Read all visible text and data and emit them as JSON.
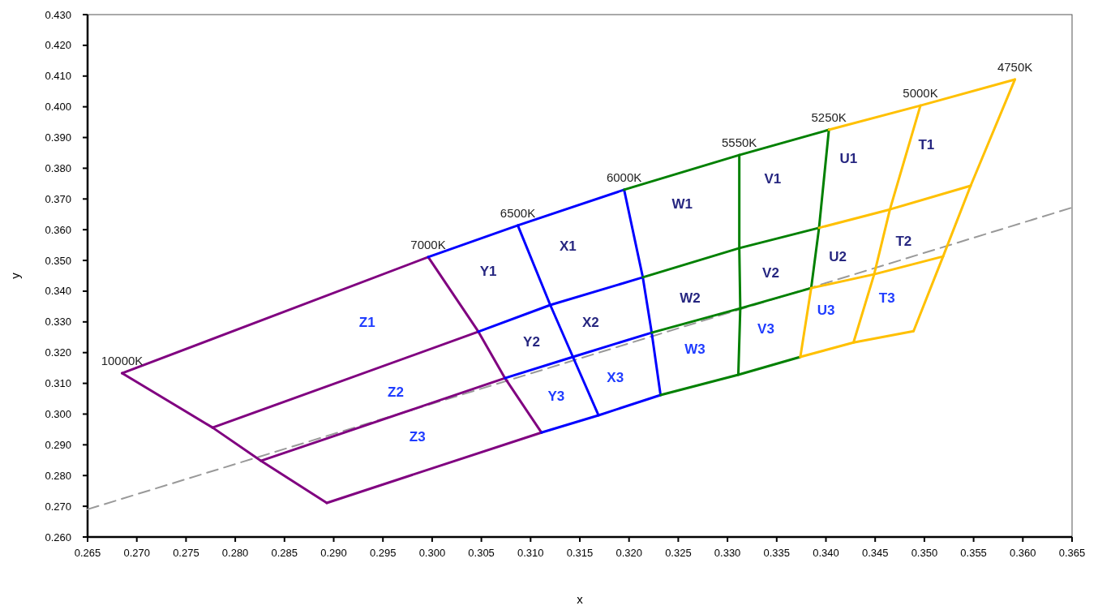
{
  "chart_data": {
    "type": "line",
    "xlabel": "x",
    "ylabel": "y",
    "xlim": [
      0.265,
      0.365
    ],
    "ylim": [
      0.26,
      0.43
    ],
    "xticks": [
      {
        "value": 0.265,
        "label": "0.265"
      },
      {
        "value": 0.27,
        "label": "0.270"
      },
      {
        "value": 0.275,
        "label": "0.275"
      },
      {
        "value": 0.28,
        "label": "0.280"
      },
      {
        "value": 0.285,
        "label": "0.285"
      },
      {
        "value": 0.29,
        "label": "0.290"
      },
      {
        "value": 0.295,
        "label": "0.295"
      },
      {
        "value": 0.3,
        "label": "0.300"
      },
      {
        "value": 0.305,
        "label": "0.305"
      },
      {
        "value": 0.31,
        "label": "0.310"
      },
      {
        "value": 0.315,
        "label": "0.315"
      },
      {
        "value": 0.32,
        "label": "0.320"
      },
      {
        "value": 0.325,
        "label": "0.325"
      },
      {
        "value": 0.33,
        "label": "0.330"
      },
      {
        "value": 0.335,
        "label": "0.335"
      },
      {
        "value": 0.34,
        "label": "0.340"
      },
      {
        "value": 0.345,
        "label": "0.345"
      },
      {
        "value": 0.35,
        "label": "0.350"
      },
      {
        "value": 0.355,
        "label": "0.355"
      },
      {
        "value": 0.36,
        "label": "0.360"
      },
      {
        "value": 0.365,
        "label": "0.365"
      }
    ],
    "yticks": [
      {
        "value": 0.26,
        "label": "0.260"
      },
      {
        "value": 0.27,
        "label": "0.270"
      },
      {
        "value": 0.28,
        "label": "0.280"
      },
      {
        "value": 0.29,
        "label": "0.290"
      },
      {
        "value": 0.3,
        "label": "0.300"
      },
      {
        "value": 0.31,
        "label": "0.310"
      },
      {
        "value": 0.32,
        "label": "0.320"
      },
      {
        "value": 0.33,
        "label": "0.330"
      },
      {
        "value": 0.34,
        "label": "0.340"
      },
      {
        "value": 0.35,
        "label": "0.350"
      },
      {
        "value": 0.36,
        "label": "0.360"
      },
      {
        "value": 0.37,
        "label": "0.370"
      },
      {
        "value": 0.38,
        "label": "0.380"
      },
      {
        "value": 0.39,
        "label": "0.390"
      },
      {
        "value": 0.4,
        "label": "0.400"
      },
      {
        "value": 0.41,
        "label": "0.410"
      },
      {
        "value": 0.42,
        "label": "0.420"
      },
      {
        "value": 0.43,
        "label": "0.430"
      }
    ],
    "grid": false,
    "marker": "none",
    "series": [
      {
        "color": "#999999",
        "line_style": "dashed",
        "x": [
          0.265,
          0.365
        ],
        "values": [
          0.269,
          0.3672
        ]
      },
      {
        "color": "#800080",
        "x": [
          0.2685,
          0.2996
        ],
        "values": [
          0.3133,
          0.3511
        ]
      },
      {
        "color": "#800080",
        "x": [
          0.2685,
          0.2777,
          0.2826,
          0.2893
        ],
        "values": [
          0.3133,
          0.2956,
          0.2848,
          0.2711
        ]
      },
      {
        "color": "#800080",
        "x": [
          0.2893,
          0.3111
        ],
        "values": [
          0.2711,
          0.294
        ]
      },
      {
        "color": "#800080",
        "x": [
          0.2996,
          0.3047,
          0.3074,
          0.3111
        ],
        "values": [
          0.3511,
          0.3268,
          0.3117,
          0.294
        ]
      },
      {
        "color": "#800080",
        "x": [
          0.2777,
          0.3047
        ],
        "values": [
          0.2956,
          0.3268
        ]
      },
      {
        "color": "#800080",
        "x": [
          0.2826,
          0.3074
        ],
        "values": [
          0.2848,
          0.3117
        ]
      },
      {
        "color": "#0000ff",
        "x": [
          0.2996,
          0.3087,
          0.3195
        ],
        "values": [
          0.3511,
          0.3614,
          0.373
        ]
      },
      {
        "color": "#0000ff",
        "x": [
          0.3087,
          0.312,
          0.3143,
          0.3169
        ],
        "values": [
          0.3614,
          0.3355,
          0.3186,
          0.2996
        ]
      },
      {
        "color": "#0000ff",
        "x": [
          0.3195,
          0.3214,
          0.3223,
          0.3232
        ],
        "values": [
          0.373,
          0.3445,
          0.3265,
          0.3062
        ]
      },
      {
        "color": "#0000ff",
        "x": [
          0.3047,
          0.312,
          0.3214
        ],
        "values": [
          0.3268,
          0.3355,
          0.3445
        ]
      },
      {
        "color": "#0000ff",
        "x": [
          0.3074,
          0.3143,
          0.3223
        ],
        "values": [
          0.3117,
          0.3186,
          0.3265
        ]
      },
      {
        "color": "#0000ff",
        "x": [
          0.3111,
          0.3169,
          0.3232
        ],
        "values": [
          0.294,
          0.2996,
          0.3062
        ]
      },
      {
        "color": "#008000",
        "x": [
          0.3195,
          0.3312,
          0.3403
        ],
        "values": [
          0.373,
          0.3843,
          0.3925
        ]
      },
      {
        "color": "#008000",
        "x": [
          0.3312,
          0.3312,
          0.3313,
          0.3311
        ],
        "values": [
          0.3843,
          0.354,
          0.3344,
          0.3128
        ]
      },
      {
        "color": "#008000",
        "x": [
          0.3403,
          0.3393,
          0.3385
        ],
        "values": [
          0.3925,
          0.3606,
          0.341
        ]
      },
      {
        "color": "#008000",
        "x": [
          0.3214,
          0.3312,
          0.3393
        ],
        "values": [
          0.3445,
          0.354,
          0.3606
        ]
      },
      {
        "color": "#008000",
        "x": [
          0.3223,
          0.3313,
          0.3385
        ],
        "values": [
          0.3265,
          0.3344,
          0.341
        ]
      },
      {
        "color": "#008000",
        "x": [
          0.3232,
          0.3311,
          0.3374
        ],
        "values": [
          0.3062,
          0.3128,
          0.3186
        ]
      },
      {
        "color": "#ffc000",
        "x": [
          0.3403,
          0.3496,
          0.3592
        ],
        "values": [
          0.3925,
          0.4004,
          0.4089
        ]
      },
      {
        "color": "#ffc000",
        "x": [
          0.3385,
          0.3374
        ],
        "values": [
          0.341,
          0.3186
        ]
      },
      {
        "color": "#ffc000",
        "x": [
          0.3496,
          0.3465,
          0.3449,
          0.3428
        ],
        "values": [
          0.4004,
          0.3666,
          0.3455,
          0.3233
        ]
      },
      {
        "color": "#ffc000",
        "x": [
          0.3592,
          0.3547,
          0.3519,
          0.3489
        ],
        "values": [
          0.4089,
          0.3743,
          0.3513,
          0.327
        ]
      },
      {
        "color": "#ffc000",
        "x": [
          0.3393,
          0.3465,
          0.3547
        ],
        "values": [
          0.3606,
          0.3666,
          0.3743
        ]
      },
      {
        "color": "#ffc000",
        "x": [
          0.3385,
          0.3449,
          0.3519
        ],
        "values": [
          0.341,
          0.3455,
          0.3513
        ]
      },
      {
        "color": "#ffc000",
        "x": [
          0.3374,
          0.3428,
          0.3489
        ],
        "values": [
          0.3186,
          0.3233,
          0.327
        ]
      }
    ],
    "annotations": [
      {
        "text": "10000K",
        "x": 0.2685,
        "y": 0.3133
      },
      {
        "text": "7000K",
        "x": 0.2996,
        "y": 0.3511
      },
      {
        "text": "6500K",
        "x": 0.3087,
        "y": 0.3614
      },
      {
        "text": "6000K",
        "x": 0.3195,
        "y": 0.373
      },
      {
        "text": "5550K",
        "x": 0.3312,
        "y": 0.3843
      },
      {
        "text": "5250K",
        "x": 0.3403,
        "y": 0.3925
      },
      {
        "text": "5000K",
        "x": 0.3496,
        "y": 0.4004
      },
      {
        "text": "4750K",
        "x": 0.3592,
        "y": 0.4089
      },
      "Z1",
      "Z2",
      "Z3",
      "Y1",
      "Y2",
      "Y3",
      "X1",
      "X2",
      "X3",
      "W1",
      "W2",
      "W3",
      "V1",
      "V2",
      "V3",
      "U1",
      "U2",
      "U3",
      "T1",
      "T2",
      "T3"
    ]
  }
}
